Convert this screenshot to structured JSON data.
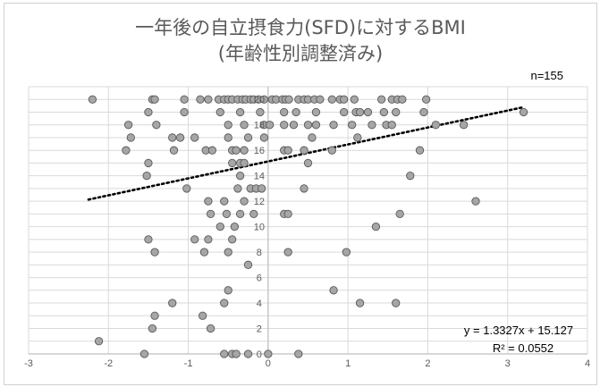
{
  "chart_data": {
    "type": "scatter",
    "title": "一年後の自立摂食力(SFD)に対するBMI",
    "subtitle": "(年齢性別調整済み)",
    "n_label": "n=155",
    "equation": "y = 1.3327x + 15.127",
    "r2": "R² = 0.0552",
    "xlim": [
      -3,
      4
    ],
    "ylim": [
      0,
      21
    ],
    "x_ticks": [
      "-3",
      "-2",
      "-1",
      "0",
      "1",
      "2",
      "3",
      "4"
    ],
    "y_ticks": [
      "0",
      "2",
      "4",
      "6",
      "8",
      "10",
      "12",
      "14",
      "16",
      "18",
      "20"
    ],
    "grid": true,
    "trendline": {
      "slope": 1.3327,
      "intercept": 15.127,
      "x_range": [
        -2.25,
        3.2
      ],
      "style": "dotted"
    },
    "colors": {
      "marker_fill": "#a6a6a6",
      "marker_edge": "#595959",
      "trend": "#000000",
      "grid": "#d9d9d9",
      "axis": "#bfbfbf",
      "text": "#595959"
    },
    "points": [
      [
        -2.2,
        20
      ],
      [
        -1.45,
        20
      ],
      [
        -1.42,
        20
      ],
      [
        -1.05,
        20
      ],
      [
        -0.85,
        20
      ],
      [
        -0.75,
        20
      ],
      [
        -0.62,
        20
      ],
      [
        -0.55,
        20
      ],
      [
        -0.5,
        20
      ],
      [
        -0.45,
        20
      ],
      [
        -0.38,
        20
      ],
      [
        -0.32,
        20
      ],
      [
        -0.28,
        20
      ],
      [
        -0.22,
        20
      ],
      [
        -0.18,
        20
      ],
      [
        -0.12,
        20
      ],
      [
        -0.05,
        20
      ],
      [
        0.05,
        20
      ],
      [
        0.1,
        20
      ],
      [
        0.18,
        20
      ],
      [
        0.22,
        20
      ],
      [
        0.26,
        20
      ],
      [
        0.38,
        20
      ],
      [
        0.45,
        20
      ],
      [
        0.5,
        20
      ],
      [
        0.58,
        20
      ],
      [
        0.65,
        20
      ],
      [
        0.8,
        20
      ],
      [
        0.9,
        20
      ],
      [
        0.95,
        20
      ],
      [
        1.08,
        20
      ],
      [
        1.42,
        20
      ],
      [
        1.55,
        20
      ],
      [
        1.62,
        20
      ],
      [
        1.68,
        20
      ],
      [
        1.98,
        20
      ],
      [
        -1.5,
        19
      ],
      [
        -1.05,
        19
      ],
      [
        -0.6,
        19
      ],
      [
        -0.35,
        19
      ],
      [
        -0.1,
        19
      ],
      [
        0.2,
        19
      ],
      [
        0.35,
        19
      ],
      [
        0.6,
        19
      ],
      [
        0.95,
        19
      ],
      [
        1.1,
        19
      ],
      [
        1.15,
        19
      ],
      [
        1.25,
        19
      ],
      [
        1.45,
        19
      ],
      [
        1.6,
        19
      ],
      [
        1.95,
        19
      ],
      [
        3.2,
        19
      ],
      [
        -1.75,
        18
      ],
      [
        -1.4,
        18
      ],
      [
        -0.5,
        18
      ],
      [
        -0.3,
        18
      ],
      [
        -0.05,
        18
      ],
      [
        0.02,
        18
      ],
      [
        0.2,
        18
      ],
      [
        0.32,
        18
      ],
      [
        0.5,
        18
      ],
      [
        0.6,
        18
      ],
      [
        0.82,
        18
      ],
      [
        1.05,
        18
      ],
      [
        1.3,
        18
      ],
      [
        1.48,
        18
      ],
      [
        1.55,
        18
      ],
      [
        2.1,
        18
      ],
      [
        2.45,
        18
      ],
      [
        -1.72,
        17
      ],
      [
        -1.2,
        17
      ],
      [
        -1.1,
        17
      ],
      [
        -0.92,
        17
      ],
      [
        -0.5,
        17
      ],
      [
        -0.25,
        17
      ],
      [
        -0.05,
        17
      ],
      [
        0.55,
        17
      ],
      [
        1.12,
        17
      ],
      [
        -1.78,
        16
      ],
      [
        -1.18,
        16
      ],
      [
        -0.78,
        16
      ],
      [
        -0.7,
        16
      ],
      [
        -0.45,
        16
      ],
      [
        -0.4,
        16
      ],
      [
        -0.3,
        16
      ],
      [
        0.2,
        16
      ],
      [
        0.25,
        16
      ],
      [
        0.45,
        16
      ],
      [
        0.8,
        16
      ],
      [
        1.9,
        16
      ],
      [
        -1.5,
        15
      ],
      [
        -0.45,
        15
      ],
      [
        -0.35,
        15
      ],
      [
        -0.3,
        15
      ],
      [
        0.5,
        15
      ],
      [
        -1.52,
        14
      ],
      [
        -0.35,
        14
      ],
      [
        1.78,
        14
      ],
      [
        -1.02,
        13
      ],
      [
        -0.38,
        13
      ],
      [
        -0.22,
        13
      ],
      [
        -0.15,
        13
      ],
      [
        -0.08,
        13
      ],
      [
        0.45,
        13
      ],
      [
        -0.75,
        12
      ],
      [
        -0.55,
        12
      ],
      [
        -0.3,
        12
      ],
      [
        2.6,
        12
      ],
      [
        -0.72,
        11
      ],
      [
        -0.52,
        11
      ],
      [
        -0.35,
        11
      ],
      [
        -0.18,
        11
      ],
      [
        0.2,
        11
      ],
      [
        0.25,
        11
      ],
      [
        1.65,
        11
      ],
      [
        -0.6,
        10
      ],
      [
        -0.42,
        10
      ],
      [
        1.35,
        10
      ],
      [
        -1.5,
        9
      ],
      [
        -0.92,
        9
      ],
      [
        -0.75,
        9
      ],
      [
        -0.45,
        9
      ],
      [
        -1.42,
        8
      ],
      [
        -0.8,
        8
      ],
      [
        -0.5,
        8
      ],
      [
        0.25,
        8
      ],
      [
        0.98,
        8
      ],
      [
        -0.25,
        7
      ],
      [
        -0.5,
        5
      ],
      [
        0.82,
        5
      ],
      [
        -1.2,
        4
      ],
      [
        -0.55,
        4
      ],
      [
        1.15,
        4
      ],
      [
        1.6,
        4
      ],
      [
        -1.42,
        3
      ],
      [
        -0.82,
        3
      ],
      [
        -1.45,
        2
      ],
      [
        -0.72,
        2
      ],
      [
        -2.12,
        1
      ],
      [
        -1.55,
        0
      ],
      [
        -0.55,
        0
      ],
      [
        -0.45,
        0
      ],
      [
        -0.4,
        0
      ],
      [
        -0.25,
        0
      ],
      [
        0.0,
        0
      ],
      [
        0.38,
        0
      ]
    ]
  }
}
